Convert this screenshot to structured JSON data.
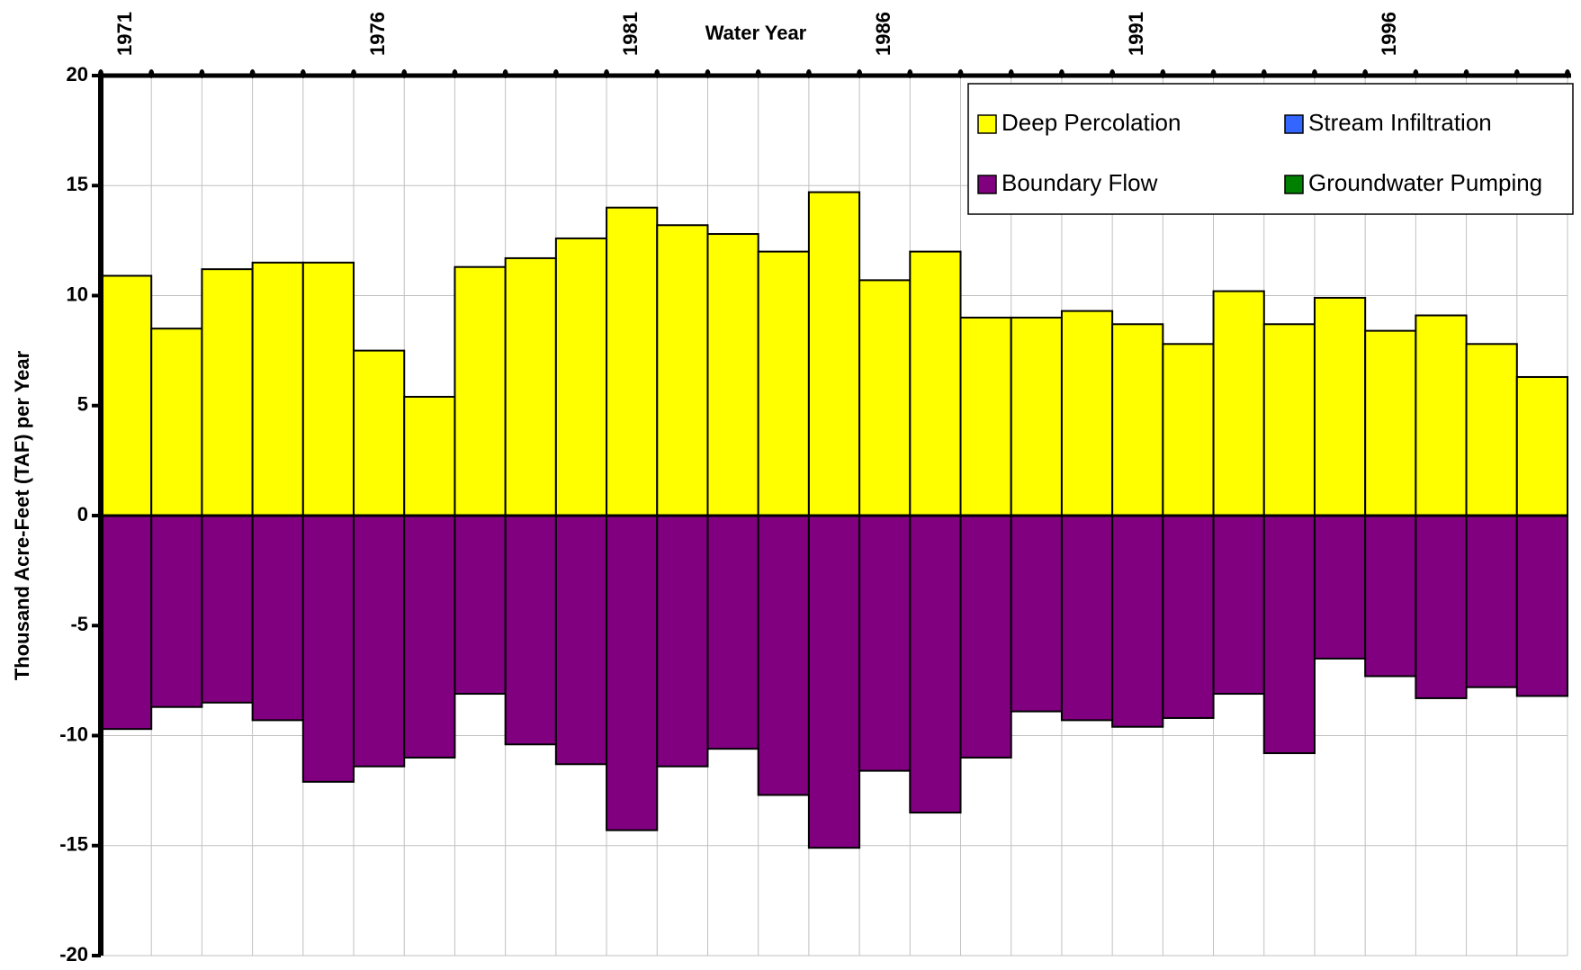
{
  "chart_data": {
    "type": "bar",
    "stacked": true,
    "x_title": "Water Year",
    "y_title": "Thousand Acre-Feet (TAF) per Year",
    "categories": [
      "1971",
      null,
      null,
      null,
      null,
      "1976",
      null,
      null,
      null,
      null,
      "1981",
      null,
      null,
      null,
      null,
      "1986",
      null,
      null,
      null,
      null,
      "1991",
      null,
      null,
      null,
      null,
      "1996",
      null,
      null,
      null
    ],
    "series": [
      {
        "name": "Deep Percolation",
        "color": "#ffff00",
        "values": [
          10.9,
          8.5,
          11.2,
          11.5,
          11.5,
          7.5,
          5.4,
          11.3,
          11.7,
          12.6,
          14.0,
          13.2,
          12.8,
          12.0,
          14.7,
          10.7,
          12.0,
          9.0,
          9.0,
          9.3,
          8.7,
          7.8,
          10.2,
          8.7,
          9.9,
          8.4,
          9.1,
          7.8,
          6.3
        ]
      },
      {
        "name": "Stream Infiltration",
        "color": "#3366ff",
        "values": [
          0,
          0,
          0,
          0,
          0,
          0,
          0,
          0,
          0,
          0,
          0,
          0,
          0,
          0,
          0,
          0,
          0,
          0,
          0,
          0,
          0,
          0,
          0,
          0,
          0,
          0,
          0,
          0,
          0
        ]
      },
      {
        "name": "Boundary Flow",
        "color": "#800080",
        "values": [
          -9.7,
          -8.7,
          -8.5,
          -9.3,
          -12.1,
          -11.4,
          -11.0,
          -8.1,
          -10.4,
          -11.3,
          -14.3,
          -11.4,
          -10.6,
          -12.7,
          -15.1,
          -11.6,
          -13.5,
          -11.0,
          -8.9,
          -9.3,
          -9.6,
          -9.2,
          -8.1,
          -10.8,
          -6.5,
          -7.3,
          -8.3,
          -7.8,
          -8.2
        ]
      },
      {
        "name": "Groundwater Pumping",
        "color": "#008000",
        "values": [
          0,
          0,
          0,
          0,
          0,
          0,
          0,
          0,
          0,
          0,
          0,
          0,
          0,
          0,
          0,
          0,
          0,
          0,
          0,
          0,
          0,
          0,
          0,
          0,
          0,
          0,
          0,
          0,
          0
        ]
      }
    ],
    "ylim": [
      -20,
      20
    ],
    "yticks": [
      -20,
      -15,
      -10,
      -5,
      0,
      5,
      10,
      15,
      20
    ],
    "grid": true,
    "legend": "upper right"
  }
}
